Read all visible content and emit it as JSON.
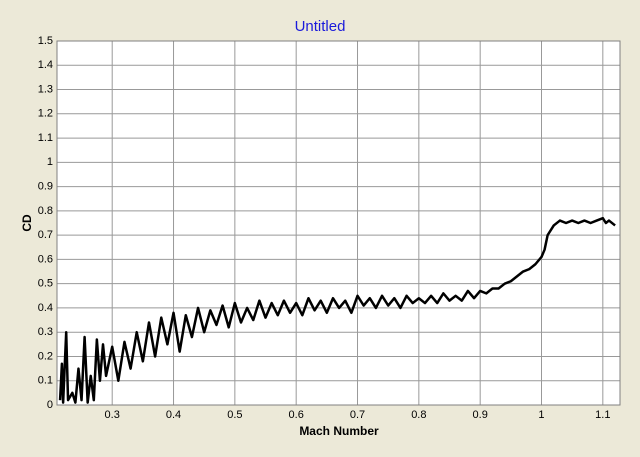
{
  "chart_data": {
    "type": "line",
    "title": "Untitled",
    "x_label": "Mach Number",
    "y_label": "CD",
    "xlim": [
      0.21,
      1.128
    ],
    "ylim": [
      0,
      1.5
    ],
    "xticks": [
      0.3,
      0.4,
      0.5,
      0.6,
      0.7,
      0.8,
      0.9,
      1,
      1.1
    ],
    "yticks": [
      0,
      0.1,
      0.2,
      0.3,
      0.4,
      0.5,
      0.6,
      0.7,
      0.8,
      0.9,
      1,
      1.1,
      1.2,
      1.3,
      1.4,
      1.5
    ],
    "grid": true,
    "x": [
      0.215,
      0.218,
      0.22,
      0.225,
      0.228,
      0.235,
      0.24,
      0.245,
      0.25,
      0.255,
      0.26,
      0.265,
      0.27,
      0.275,
      0.28,
      0.285,
      0.29,
      0.3,
      0.31,
      0.32,
      0.33,
      0.34,
      0.35,
      0.36,
      0.37,
      0.38,
      0.39,
      0.4,
      0.41,
      0.42,
      0.43,
      0.44,
      0.45,
      0.46,
      0.47,
      0.48,
      0.49,
      0.5,
      0.51,
      0.52,
      0.53,
      0.54,
      0.55,
      0.56,
      0.57,
      0.58,
      0.59,
      0.6,
      0.61,
      0.62,
      0.63,
      0.64,
      0.65,
      0.66,
      0.67,
      0.68,
      0.69,
      0.7,
      0.71,
      0.72,
      0.73,
      0.74,
      0.75,
      0.76,
      0.77,
      0.78,
      0.79,
      0.8,
      0.81,
      0.82,
      0.83,
      0.84,
      0.85,
      0.86,
      0.87,
      0.88,
      0.89,
      0.9,
      0.91,
      0.92,
      0.93,
      0.94,
      0.95,
      0.96,
      0.97,
      0.98,
      0.99,
      1.0,
      1.005,
      1.01,
      1.02,
      1.03,
      1.04,
      1.05,
      1.06,
      1.07,
      1.08,
      1.09,
      1.1,
      1.105,
      1.11,
      1.12
    ],
    "series": [
      {
        "color": "#000000",
        "values": [
          0.02,
          0.17,
          0.01,
          0.3,
          0.02,
          0.05,
          0.01,
          0.15,
          0.02,
          0.28,
          0.01,
          0.12,
          0.02,
          0.27,
          0.1,
          0.25,
          0.12,
          0.24,
          0.1,
          0.26,
          0.15,
          0.3,
          0.18,
          0.34,
          0.2,
          0.36,
          0.25,
          0.38,
          0.22,
          0.37,
          0.28,
          0.4,
          0.3,
          0.39,
          0.33,
          0.41,
          0.32,
          0.42,
          0.34,
          0.4,
          0.35,
          0.43,
          0.36,
          0.42,
          0.37,
          0.43,
          0.38,
          0.42,
          0.37,
          0.44,
          0.39,
          0.43,
          0.38,
          0.44,
          0.4,
          0.43,
          0.38,
          0.45,
          0.41,
          0.44,
          0.4,
          0.45,
          0.41,
          0.44,
          0.4,
          0.45,
          0.42,
          0.44,
          0.42,
          0.45,
          0.42,
          0.46,
          0.43,
          0.45,
          0.43,
          0.47,
          0.44,
          0.47,
          0.46,
          0.48,
          0.48,
          0.5,
          0.51,
          0.53,
          0.55,
          0.56,
          0.58,
          0.61,
          0.64,
          0.7,
          0.74,
          0.76,
          0.75,
          0.76,
          0.75,
          0.76,
          0.75,
          0.76,
          0.77,
          0.75,
          0.76,
          0.74
        ]
      }
    ]
  }
}
